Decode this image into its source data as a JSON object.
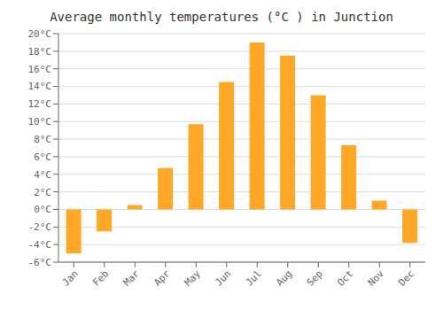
{
  "chart_data": {
    "type": "bar",
    "title": "Average monthly temperatures (°C ) in Junction",
    "categories": [
      "Jan",
      "Feb",
      "Mar",
      "Apr",
      "May",
      "Jun",
      "Jul",
      "Aug",
      "Sep",
      "Oct",
      "Nov",
      "Dec"
    ],
    "values": [
      -5.0,
      -2.5,
      0.5,
      4.7,
      9.7,
      14.5,
      19.0,
      17.5,
      13.0,
      7.3,
      1.0,
      -3.8
    ],
    "color": "#FFA726",
    "ylim": [
      -6,
      20
    ],
    "yticks": [
      {
        "value": -6,
        "label": "-6°C"
      },
      {
        "value": -4,
        "label": "-4°C"
      },
      {
        "value": -2,
        "label": "-2°C"
      },
      {
        "value": 0,
        "label": "0°C"
      },
      {
        "value": 2,
        "label": "2°C"
      },
      {
        "value": 4,
        "label": "4°C"
      },
      {
        "value": 6,
        "label": "6°C"
      },
      {
        "value": 8,
        "label": "8°C"
      },
      {
        "value": 10,
        "label": "10°C"
      },
      {
        "value": 12,
        "label": "12°C"
      },
      {
        "value": 14,
        "label": "14°C"
      },
      {
        "value": 16,
        "label": "16°C"
      },
      {
        "value": 18,
        "label": "18°C"
      },
      {
        "value": 20,
        "label": "20°C"
      }
    ],
    "grid": true
  }
}
